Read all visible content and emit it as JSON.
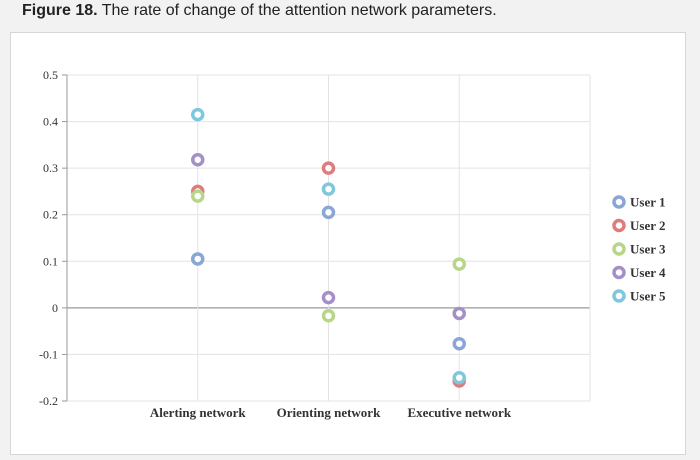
{
  "caption": {
    "label": "Figure 18.",
    "text": "The rate of change of the attention network parameters."
  },
  "chart_data": {
    "type": "scatter",
    "categories": [
      "Alerting network",
      "Orienting network",
      "Executive network"
    ],
    "ylim": [
      -0.2,
      0.5
    ],
    "yticks": [
      "-0.2",
      "-0.1",
      "0",
      "0.1",
      "0.2",
      "0.3",
      "0.4",
      "0.5"
    ],
    "ytick_values": [
      -0.2,
      -0.1,
      0,
      0.1,
      0.2,
      0.3,
      0.4,
      0.5
    ],
    "grid": true,
    "legend_position": "right",
    "series": [
      {
        "name": "User 1",
        "color": "#8aa6d6",
        "values": [
          0.105,
          0.205,
          -0.077
        ]
      },
      {
        "name": "User 2",
        "color": "#e07b7b",
        "values": [
          0.25,
          0.3,
          -0.157
        ]
      },
      {
        "name": "User 3",
        "color": "#b7d68a",
        "values": [
          0.24,
          -0.017,
          0.094
        ]
      },
      {
        "name": "User 4",
        "color": "#a58fc9",
        "values": [
          0.318,
          0.022,
          -0.012
        ]
      },
      {
        "name": "User 5",
        "color": "#7fc7dc",
        "values": [
          0.415,
          0.255,
          -0.15
        ]
      }
    ]
  }
}
